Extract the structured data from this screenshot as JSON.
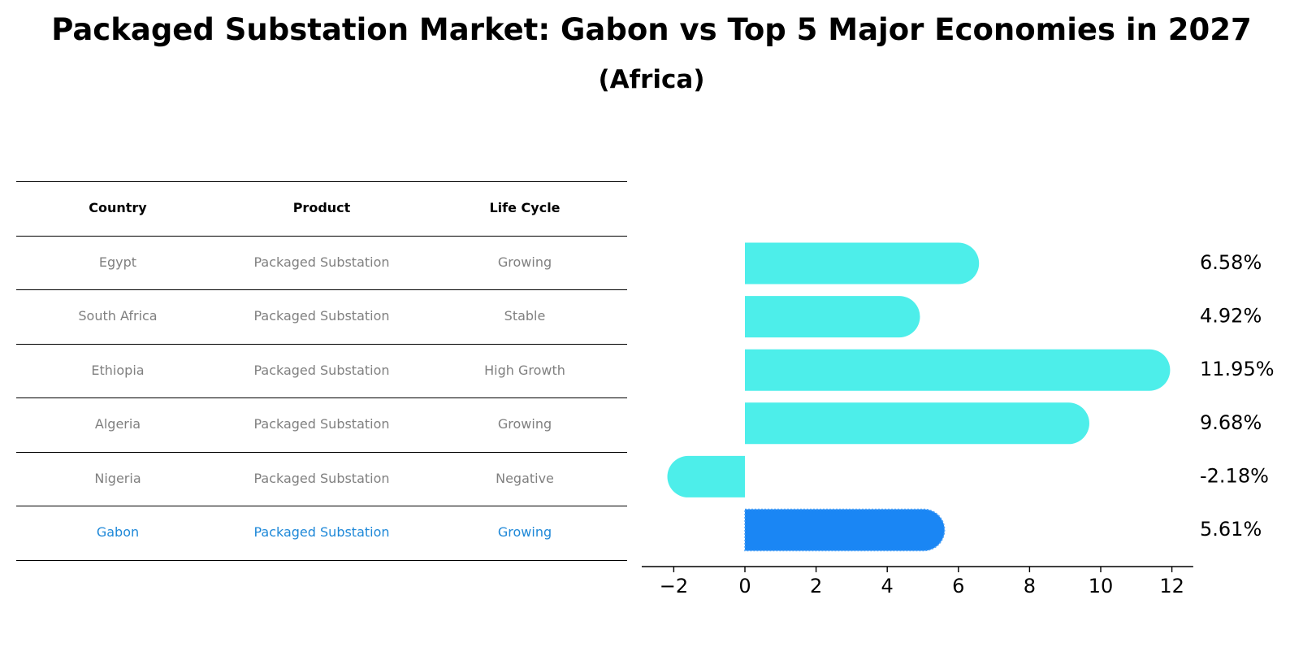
{
  "title": "Packaged Substation Market: Gabon vs Top 5 Major Economies in 2027",
  "subtitle": "(Africa)",
  "table": {
    "columns": [
      "Country",
      "Product",
      "Life Cycle"
    ],
    "rows": [
      {
        "country": "Egypt",
        "product": "Packaged Substation",
        "life_cycle": "Growing",
        "highlight": false
      },
      {
        "country": "South Africa",
        "product": "Packaged Substation",
        "life_cycle": "Stable",
        "highlight": false
      },
      {
        "country": "Ethiopia",
        "product": "Packaged Substation",
        "life_cycle": "High Growth",
        "highlight": false
      },
      {
        "country": "Algeria",
        "product": "Packaged Substation",
        "life_cycle": "Growing",
        "highlight": false
      },
      {
        "country": "Nigeria",
        "product": "Packaged Substation",
        "life_cycle": "Negative",
        "highlight": false
      },
      {
        "country": "Gabon",
        "product": "Packaged Substation",
        "life_cycle": "Growing",
        "highlight": true
      }
    ]
  },
  "colors": {
    "bar": "#4deeea",
    "highlight_bar": "#1a86f4",
    "muted_text": "#808080",
    "highlight_text": "#1e88d8"
  },
  "chart_data": {
    "type": "bar",
    "orientation": "horizontal",
    "categories": [
      "Egypt",
      "South Africa",
      "Ethiopia",
      "Algeria",
      "Nigeria",
      "Gabon"
    ],
    "values": [
      6.58,
      4.92,
      11.95,
      9.68,
      -2.18,
      5.61
    ],
    "labels": [
      "6.58%",
      "4.92%",
      "11.95%",
      "9.68%",
      "-2.18%",
      "5.61%"
    ],
    "highlight": "Gabon",
    "xlim": [
      -2.9,
      12.6
    ],
    "xticks": [
      -2,
      0,
      2,
      4,
      6,
      8,
      10,
      12
    ],
    "xtick_labels": [
      "−2",
      "0",
      "2",
      "4",
      "6",
      "8",
      "10",
      "12"
    ],
    "xlabel": "",
    "ylabel": "",
    "grid": false
  }
}
